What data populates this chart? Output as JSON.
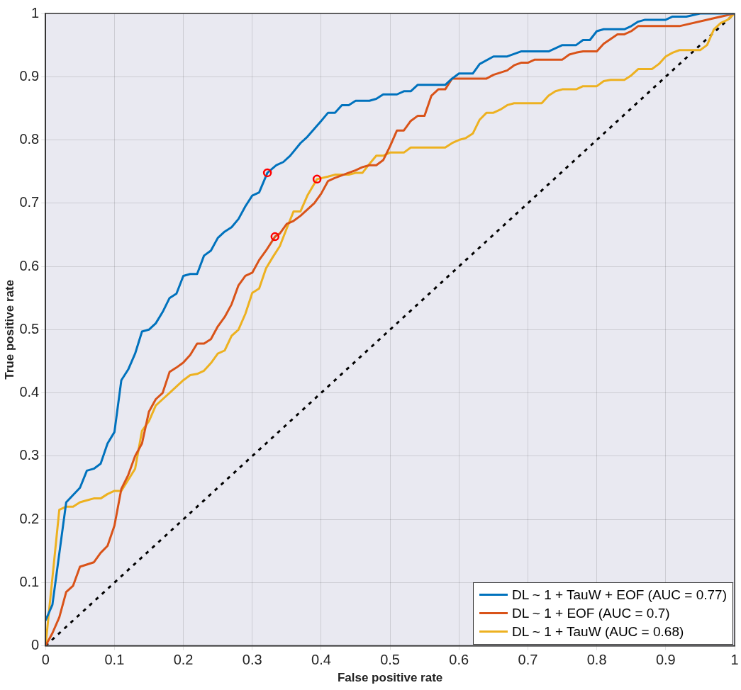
{
  "chart_data": {
    "type": "line",
    "xlabel": "False positive rate",
    "ylabel": "True positive rate",
    "xlim": [
      0,
      1
    ],
    "ylim": [
      0,
      1
    ],
    "xticks": [
      0,
      0.1,
      0.2,
      0.3,
      0.4,
      0.5,
      0.6,
      0.7,
      0.8,
      0.9,
      1
    ],
    "yticks": [
      0,
      0.1,
      0.2,
      0.3,
      0.4,
      0.5,
      0.6,
      0.7,
      0.8,
      0.9,
      1
    ],
    "grid": true,
    "legend": "bottom right",
    "marker": "none",
    "line_style": "solid",
    "series": [
      {
        "name": "DL ~ 1 + TauW + EOF (AUC = 0.77)",
        "color": "#0072bd",
        "x": [
          0,
          0.01,
          0.03,
          0.05,
          0.06,
          0.07,
          0.08,
          0.09,
          0.1,
          0.11,
          0.12,
          0.13,
          0.14,
          0.15,
          0.16,
          0.17,
          0.18,
          0.19,
          0.2,
          0.21,
          0.22,
          0.23,
          0.24,
          0.25,
          0.26,
          0.27,
          0.28,
          0.29,
          0.3,
          0.31,
          0.322,
          0.335,
          0.345,
          0.355,
          0.37,
          0.38,
          0.4,
          0.41,
          0.42,
          0.43,
          0.44,
          0.45,
          0.47,
          0.48,
          0.49,
          0.51,
          0.52,
          0.53,
          0.54,
          0.58,
          0.59,
          0.6,
          0.62,
          0.63,
          0.65,
          0.67,
          0.69,
          0.73,
          0.75,
          0.77,
          0.78,
          0.79,
          0.8,
          0.81,
          0.84,
          0.85,
          0.86,
          0.87,
          0.9,
          0.91,
          0.93,
          0.95,
          1
        ],
        "values": [
          0.04,
          0.065,
          0.227,
          0.25,
          0.277,
          0.28,
          0.288,
          0.32,
          0.338,
          0.42,
          0.437,
          0.462,
          0.497,
          0.5,
          0.51,
          0.528,
          0.55,
          0.557,
          0.585,
          0.588,
          0.588,
          0.617,
          0.625,
          0.645,
          0.655,
          0.662,
          0.675,
          0.695,
          0.712,
          0.717,
          0.748,
          0.76,
          0.765,
          0.775,
          0.795,
          0.805,
          0.83,
          0.843,
          0.843,
          0.855,
          0.855,
          0.862,
          0.862,
          0.865,
          0.872,
          0.872,
          0.877,
          0.877,
          0.887,
          0.887,
          0.897,
          0.905,
          0.905,
          0.92,
          0.932,
          0.932,
          0.94,
          0.94,
          0.95,
          0.95,
          0.958,
          0.958,
          0.972,
          0.975,
          0.975,
          0.98,
          0.987,
          0.99,
          0.99,
          0.995,
          0.995,
          1,
          1
        ]
      },
      {
        "name": "DL ~ 1 + EOF (AUC = 0.7)",
        "color": "#d95319",
        "x": [
          0,
          0.01,
          0.02,
          0.03,
          0.04,
          0.05,
          0.07,
          0.08,
          0.09,
          0.1,
          0.11,
          0.12,
          0.13,
          0.14,
          0.15,
          0.16,
          0.17,
          0.18,
          0.19,
          0.2,
          0.21,
          0.22,
          0.23,
          0.24,
          0.25,
          0.26,
          0.27,
          0.28,
          0.29,
          0.3,
          0.31,
          0.32,
          0.333,
          0.34,
          0.35,
          0.36,
          0.37,
          0.39,
          0.4,
          0.41,
          0.42,
          0.44,
          0.45,
          0.46,
          0.47,
          0.48,
          0.49,
          0.5,
          0.51,
          0.52,
          0.53,
          0.54,
          0.55,
          0.56,
          0.57,
          0.58,
          0.59,
          0.64,
          0.65,
          0.67,
          0.68,
          0.69,
          0.7,
          0.71,
          0.75,
          0.76,
          0.77,
          0.78,
          0.8,
          0.81,
          0.83,
          0.84,
          0.85,
          0.86,
          0.92,
          1
        ],
        "values": [
          0,
          0.02,
          0.045,
          0.085,
          0.095,
          0.125,
          0.132,
          0.147,
          0.158,
          0.19,
          0.248,
          0.27,
          0.3,
          0.32,
          0.37,
          0.39,
          0.4,
          0.433,
          0.44,
          0.448,
          0.46,
          0.478,
          0.478,
          0.485,
          0.505,
          0.52,
          0.54,
          0.57,
          0.585,
          0.59,
          0.61,
          0.625,
          0.647,
          0.652,
          0.667,
          0.672,
          0.68,
          0.7,
          0.715,
          0.735,
          0.74,
          0.748,
          0.752,
          0.757,
          0.76,
          0.76,
          0.768,
          0.79,
          0.815,
          0.815,
          0.83,
          0.838,
          0.838,
          0.87,
          0.88,
          0.88,
          0.897,
          0.897,
          0.903,
          0.91,
          0.918,
          0.922,
          0.922,
          0.927,
          0.927,
          0.935,
          0.938,
          0.94,
          0.94,
          0.952,
          0.967,
          0.967,
          0.972,
          0.98,
          0.98,
          1
        ]
      },
      {
        "name": "DL ~ 1 + TauW (AUC = 0.68)",
        "color": "#edb120",
        "x": [
          0,
          0.02,
          0.03,
          0.04,
          0.05,
          0.06,
          0.07,
          0.08,
          0.09,
          0.1,
          0.11,
          0.13,
          0.14,
          0.15,
          0.16,
          0.17,
          0.18,
          0.19,
          0.2,
          0.21,
          0.22,
          0.23,
          0.24,
          0.25,
          0.26,
          0.27,
          0.28,
          0.29,
          0.3,
          0.31,
          0.32,
          0.33,
          0.34,
          0.35,
          0.36,
          0.37,
          0.38,
          0.394,
          0.41,
          0.42,
          0.44,
          0.45,
          0.46,
          0.47,
          0.48,
          0.49,
          0.5,
          0.52,
          0.53,
          0.58,
          0.59,
          0.6,
          0.61,
          0.62,
          0.63,
          0.64,
          0.65,
          0.66,
          0.67,
          0.68,
          0.72,
          0.73,
          0.74,
          0.75,
          0.77,
          0.78,
          0.8,
          0.81,
          0.82,
          0.84,
          0.85,
          0.86,
          0.88,
          0.89,
          0.9,
          0.91,
          0.92,
          0.95,
          0.96,
          0.97,
          0.98,
          0.99,
          1
        ],
        "values": [
          0,
          0.215,
          0.22,
          0.22,
          0.227,
          0.23,
          0.233,
          0.233,
          0.24,
          0.245,
          0.245,
          0.28,
          0.34,
          0.355,
          0.38,
          0.39,
          0.4,
          0.41,
          0.42,
          0.428,
          0.43,
          0.435,
          0.447,
          0.462,
          0.467,
          0.49,
          0.5,
          0.525,
          0.558,
          0.565,
          0.597,
          0.615,
          0.632,
          0.66,
          0.687,
          0.687,
          0.712,
          0.738,
          0.742,
          0.745,
          0.745,
          0.748,
          0.748,
          0.762,
          0.775,
          0.775,
          0.78,
          0.78,
          0.788,
          0.788,
          0.795,
          0.8,
          0.803,
          0.81,
          0.832,
          0.843,
          0.843,
          0.848,
          0.855,
          0.858,
          0.858,
          0.87,
          0.877,
          0.88,
          0.88,
          0.885,
          0.885,
          0.893,
          0.895,
          0.895,
          0.902,
          0.912,
          0.912,
          0.92,
          0.932,
          0.938,
          0.942,
          0.942,
          0.95,
          0.975,
          0.985,
          0.99,
          1
        ]
      },
      {
        "type": "line",
        "color": "#000000",
        "line_style": "dotted",
        "x": [
          0,
          1
        ],
        "values": [
          0,
          1
        ]
      },
      {
        "type": "scatter",
        "color": "#ff0000",
        "marker": "circle",
        "x": [
          0.322,
          0.333,
          0.394
        ],
        "values": [
          0.748,
          0.647,
          0.738
        ]
      }
    ]
  }
}
